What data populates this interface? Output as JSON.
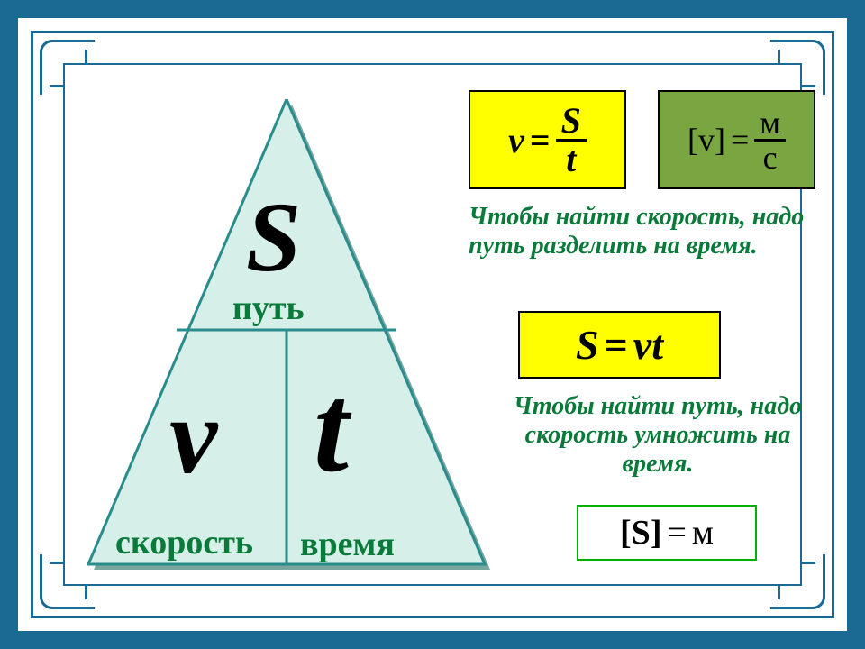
{
  "frame": {
    "outer_border_color": "#1a6a94",
    "line_color": "#1a6a94",
    "bg": "#ffffff"
  },
  "triangle": {
    "fill": "#d6efe9",
    "stroke": "#2a8c8c",
    "shadow": "#7aa6a0",
    "top": {
      "symbol": "S",
      "label": "путь"
    },
    "left": {
      "symbol": "v",
      "label": "скорость"
    },
    "right": {
      "symbol": "t",
      "label": "время"
    },
    "label_color": "#0a7a3a",
    "label_fontsize": 38
  },
  "formulas": {
    "velocity": {
      "bg": "#ffff00",
      "lhs": "v",
      "eq": "=",
      "num": "S",
      "den": "t"
    },
    "units_v": {
      "bg": "#7aa642",
      "lhs": "[v]",
      "eq": "=",
      "num": "м",
      "den": "с"
    },
    "distance": {
      "bg": "#ffff00",
      "text_lhs": "S",
      "eq": "=",
      "rhs1": "v",
      "rhs2": "t"
    },
    "units_s": {
      "bg": "#ffffff",
      "lhs": "[S]",
      "eq": "=",
      "rhs": "м"
    }
  },
  "rules": {
    "velocity": {
      "text": "Чтобы найти скорость, надо путь разделить на время.",
      "color": "#0a7a3a",
      "fontsize": 28
    },
    "distance": {
      "text": "Чтобы найти путь, надо скорость умножить на время.",
      "color": "#0a7a3a",
      "fontsize": 28
    }
  }
}
